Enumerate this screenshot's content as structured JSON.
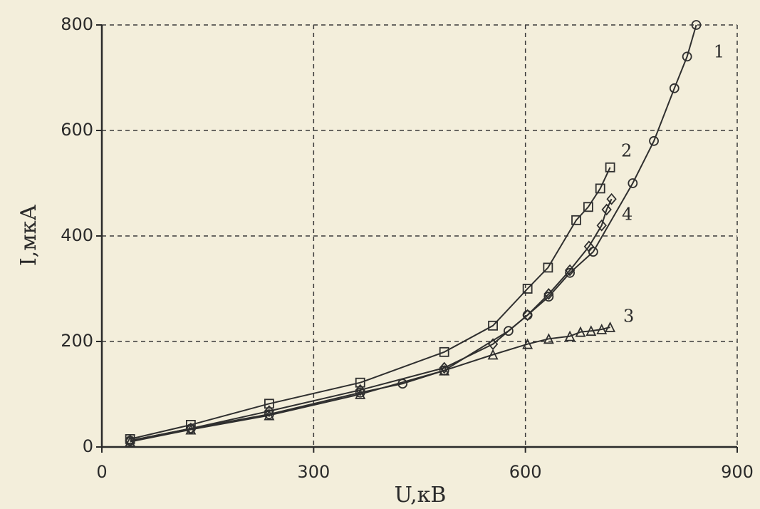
{
  "chart_data": {
    "type": "line",
    "x_label": "U,кВ",
    "y_label": "I,мкА",
    "xlim": [
      0,
      900
    ],
    "xticks": [
      0,
      300,
      600,
      900
    ],
    "ylim": [
      0,
      800
    ],
    "yticks": [
      0,
      200,
      400,
      600,
      800
    ],
    "grid": true,
    "series": [
      {
        "name": "1",
        "color": "#2f2f2f",
        "marker": "circle",
        "x": [
          40,
          126,
          237,
          366,
          426,
          485,
          576,
          603,
          633,
          663,
          696,
          752,
          782,
          811,
          829,
          842
        ],
        "values": [
          12,
          35,
          62,
          103,
          120,
          145,
          220,
          250,
          285,
          330,
          370,
          500,
          580,
          680,
          740,
          800
        ]
      },
      {
        "name": "2",
        "color": "#2f2f2f",
        "marker": "square",
        "x": [
          40,
          126,
          237,
          366,
          485,
          554,
          603,
          632,
          672,
          689,
          706,
          720
        ],
        "values": [
          15,
          42,
          82,
          122,
          180,
          230,
          300,
          340,
          430,
          455,
          490,
          530
        ]
      },
      {
        "name": "3",
        "color": "#2f2f2f",
        "marker": "triangle",
        "x": [
          40,
          126,
          237,
          366,
          485,
          554,
          603,
          633,
          663,
          678,
          693,
          708,
          720
        ],
        "values": [
          10,
          33,
          60,
          100,
          145,
          175,
          195,
          205,
          210,
          218,
          220,
          223,
          227
        ]
      },
      {
        "name": "4",
        "color": "#2f2f2f",
        "marker": "diamond",
        "x": [
          40,
          126,
          237,
          366,
          485,
          554,
          603,
          633,
          663,
          690,
          708,
          715,
          722
        ],
        "values": [
          12,
          35,
          68,
          108,
          150,
          195,
          250,
          290,
          335,
          380,
          420,
          450,
          470
        ]
      }
    ]
  }
}
